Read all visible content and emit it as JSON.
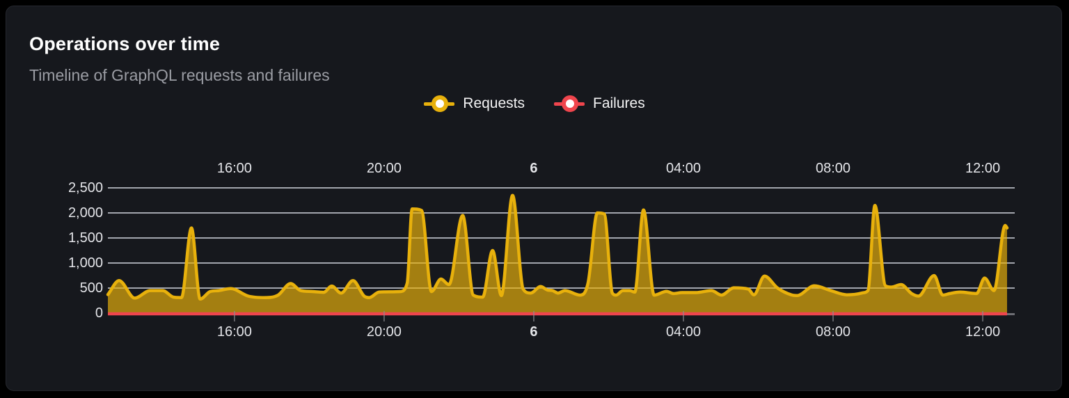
{
  "panel": {
    "title": "Operations over time",
    "subtitle": "Timeline of GraphQL requests and failures"
  },
  "legend": {
    "items": [
      {
        "label": "Requests",
        "color": "#e8b10c"
      },
      {
        "label": "Failures",
        "color": "#ef454d"
      }
    ]
  },
  "colors": {
    "panel_background": "#16181d",
    "outer_background": "#000000",
    "gridline": "#e3e6f0",
    "axis_text": "#e4e5e9",
    "requests": "#e8b10c",
    "requests_fill_opacity": 0.68,
    "failures": "#ef454d",
    "tick_mark": "#8e8e93",
    "axis_stub": "#6e6e74"
  },
  "chart_data": {
    "type": "area",
    "title": "Operations over time",
    "subtitle": "Timeline of GraphQL requests and failures",
    "x_unit": "minutes since 00:00 of day 5 (range spans ~12:40 day 5 to ~12:40 day 6)",
    "x_domain": [
      757,
      2199
    ],
    "y_domain": [
      0,
      2500
    ],
    "grid": true,
    "legend_position": "top-center",
    "axes": {
      "top_labels": true,
      "bottom_labels": true
    },
    "x_ticks": [
      {
        "t": 960,
        "label": "16:00",
        "bold": false
      },
      {
        "t": 1200,
        "label": "20:00",
        "bold": false
      },
      {
        "t": 1440,
        "label": "6",
        "bold": true
      },
      {
        "t": 1680,
        "label": "04:00",
        "bold": false
      },
      {
        "t": 1920,
        "label": "08:00",
        "bold": false
      },
      {
        "t": 2160,
        "label": "12:00",
        "bold": false
      }
    ],
    "y_ticks": [
      {
        "v": 0,
        "label": "0"
      },
      {
        "v": 500,
        "label": "500"
      },
      {
        "v": 1000,
        "label": "1,000"
      },
      {
        "v": 1500,
        "label": "1,500"
      },
      {
        "v": 2000,
        "label": "2,000"
      },
      {
        "v": 2500,
        "label": "2,500"
      }
    ],
    "series": [
      {
        "name": "Requests",
        "color": "#e8b10c",
        "points": [
          [
            757,
            370
          ],
          [
            775,
            650
          ],
          [
            800,
            300
          ],
          [
            825,
            450
          ],
          [
            845,
            450
          ],
          [
            862,
            320
          ],
          [
            875,
            310
          ],
          [
            891,
            1700
          ],
          [
            905,
            280
          ],
          [
            921,
            430
          ],
          [
            935,
            450
          ],
          [
            954,
            490
          ],
          [
            982,
            340
          ],
          [
            1008,
            310
          ],
          [
            1030,
            360
          ],
          [
            1050,
            590
          ],
          [
            1066,
            450
          ],
          [
            1085,
            430
          ],
          [
            1103,
            415
          ],
          [
            1116,
            540
          ],
          [
            1131,
            400
          ],
          [
            1150,
            650
          ],
          [
            1168,
            340
          ],
          [
            1176,
            310
          ],
          [
            1192,
            420
          ],
          [
            1226,
            430
          ],
          [
            1237,
            600
          ],
          [
            1245,
            2080
          ],
          [
            1260,
            2050
          ],
          [
            1276,
            430
          ],
          [
            1291,
            680
          ],
          [
            1304,
            570
          ],
          [
            1326,
            1950
          ],
          [
            1343,
            360
          ],
          [
            1358,
            320
          ],
          [
            1374,
            1250
          ],
          [
            1388,
            350
          ],
          [
            1406,
            2350
          ],
          [
            1423,
            480
          ],
          [
            1435,
            400
          ],
          [
            1451,
            530
          ],
          [
            1462,
            460
          ],
          [
            1470,
            450
          ],
          [
            1479,
            400
          ],
          [
            1490,
            450
          ],
          [
            1514,
            360
          ],
          [
            1527,
            600
          ],
          [
            1542,
            2000
          ],
          [
            1553,
            1980
          ],
          [
            1566,
            400
          ],
          [
            1572,
            360
          ],
          [
            1583,
            450
          ],
          [
            1594,
            450
          ],
          [
            1602,
            420
          ],
          [
            1616,
            2060
          ],
          [
            1633,
            360
          ],
          [
            1653,
            435
          ],
          [
            1664,
            390
          ],
          [
            1678,
            410
          ],
          [
            1700,
            410
          ],
          [
            1725,
            450
          ],
          [
            1741,
            360
          ],
          [
            1761,
            505
          ],
          [
            1784,
            480
          ],
          [
            1793,
            365
          ],
          [
            1810,
            740
          ],
          [
            1831,
            500
          ],
          [
            1853,
            365
          ],
          [
            1862,
            350
          ],
          [
            1890,
            545
          ],
          [
            1916,
            450
          ],
          [
            1942,
            365
          ],
          [
            1966,
            400
          ],
          [
            1976,
            450
          ],
          [
            1987,
            2150
          ],
          [
            2004,
            545
          ],
          [
            2013,
            520
          ],
          [
            2029,
            570
          ],
          [
            2046,
            390
          ],
          [
            2057,
            340
          ],
          [
            2082,
            750
          ],
          [
            2096,
            360
          ],
          [
            2107,
            390
          ],
          [
            2124,
            420
          ],
          [
            2150,
            390
          ],
          [
            2163,
            700
          ],
          [
            2178,
            450
          ],
          [
            2196,
            1750
          ],
          [
            2199,
            1700
          ]
        ]
      },
      {
        "name": "Failures",
        "color": "#ef454d",
        "points": [
          [
            757,
            0
          ],
          [
            2199,
            0
          ]
        ]
      }
    ]
  }
}
